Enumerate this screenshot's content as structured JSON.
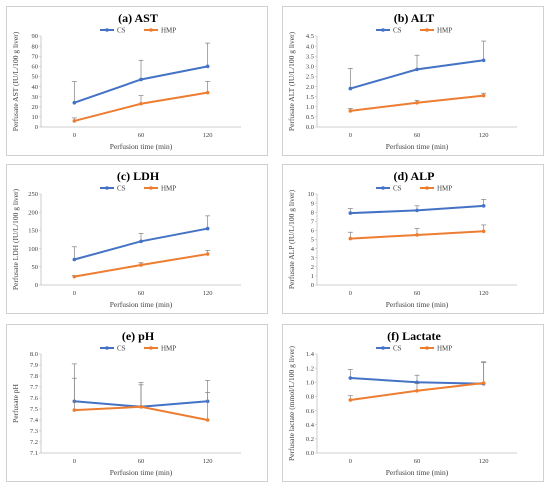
{
  "colors": {
    "CS": "#4472C4",
    "HMP": "#ED7D31",
    "errorbar": "#7f7f7f",
    "axis": "#bfbfbf"
  },
  "chart_data": [
    {
      "type": "line",
      "title": "(a) AST",
      "xlabel": "Perfusion time (min)",
      "ylabel": "Perfusate AST (IU/L/100 g liver)",
      "categories": [
        "0",
        "60",
        "120"
      ],
      "ylim": [
        0,
        90
      ],
      "yticks": [
        "0",
        "10",
        "20",
        "30",
        "40",
        "50",
        "60",
        "70",
        "80",
        "90"
      ],
      "legend": "top",
      "series": [
        {
          "name": "CS",
          "values": [
            24,
            47,
            60
          ],
          "errors": [
            21,
            19,
            23
          ]
        },
        {
          "name": "HMP",
          "values": [
            6,
            23,
            34
          ],
          "errors": [
            3,
            8,
            11
          ]
        }
      ]
    },
    {
      "type": "line",
      "title": "(b) ALT",
      "xlabel": "Perfusion time (min)",
      "ylabel": "Perfusate ALT (IU/L/100 g liver)",
      "categories": [
        "0",
        "60",
        "120"
      ],
      "ylim": [
        0,
        4.5
      ],
      "yticks": [
        "0.0",
        "0.5",
        "1.0",
        "1.5",
        "2.0",
        "2.5",
        "3.0",
        "3.5",
        "4.0",
        "4.5"
      ],
      "legend": "top",
      "series": [
        {
          "name": "CS",
          "values": [
            1.9,
            2.85,
            3.3
          ],
          "errors": [
            1.0,
            0.7,
            0.95
          ]
        },
        {
          "name": "HMP",
          "values": [
            0.8,
            1.2,
            1.55
          ],
          "errors": [
            0.12,
            0.12,
            0.12
          ]
        }
      ]
    },
    {
      "type": "line",
      "title": "(c) LDH",
      "xlabel": "Perfusion time (min)",
      "ylabel": "Perfusate LDH (IU/L/100 g liver)",
      "categories": [
        "0",
        "60",
        "120"
      ],
      "ylim": [
        0,
        250
      ],
      "yticks": [
        "0",
        "50",
        "100",
        "150",
        "200",
        "250"
      ],
      "legend": "top",
      "series": [
        {
          "name": "CS",
          "values": [
            70,
            120,
            155
          ],
          "errors": [
            35,
            22,
            35
          ]
        },
        {
          "name": "HMP",
          "values": [
            23,
            55,
            85
          ],
          "errors": [
            3,
            6,
            10
          ]
        }
      ]
    },
    {
      "type": "line",
      "title": "(d) ALP",
      "xlabel": "Perfusion time (min)",
      "ylabel": "Perfusate ALP (IU/L/100 g liver)",
      "categories": [
        "0",
        "60",
        "120"
      ],
      "ylim": [
        0,
        10
      ],
      "yticks": [
        "0",
        "1",
        "2",
        "3",
        "4",
        "5",
        "6",
        "7",
        "8",
        "9",
        "10"
      ],
      "legend": "top",
      "series": [
        {
          "name": "CS",
          "values": [
            7.9,
            8.2,
            8.7
          ],
          "errors": [
            0.5,
            0.5,
            0.7
          ]
        },
        {
          "name": "HMP",
          "values": [
            5.1,
            5.5,
            5.9
          ],
          "errors": [
            0.7,
            0.7,
            0.7
          ]
        }
      ]
    },
    {
      "type": "line",
      "title": "(e) pH",
      "xlabel": "Perfusion time (min)",
      "ylabel": "Perfusate pH",
      "categories": [
        "0",
        "60",
        "120"
      ],
      "ylim": [
        7.1,
        8.0
      ],
      "yticks": [
        "7.1",
        "7.2",
        "7.3",
        "7.4",
        "7.5",
        "7.6",
        "7.7",
        "7.8",
        "7.9",
        "8.0"
      ],
      "legend": "top",
      "series": [
        {
          "name": "CS",
          "values": [
            7.57,
            7.52,
            7.57
          ],
          "errors": [
            0.34,
            0.22,
            0.19
          ]
        },
        {
          "name": "HMP",
          "values": [
            7.49,
            7.52,
            7.4
          ],
          "errors": [
            0.29,
            0.2,
            0.25
          ]
        }
      ]
    },
    {
      "type": "line",
      "title": "(f) Lactate",
      "xlabel": "Perfusion time (min)",
      "ylabel": "Perfusate lactate (mmol/L/100 g liver)",
      "categories": [
        "0",
        "60",
        "120"
      ],
      "ylim": [
        0,
        1.4
      ],
      "yticks": [
        "0.0",
        "0.2",
        "0.4",
        "0.6",
        "0.8",
        "1.0",
        "1.2",
        "1.4"
      ],
      "legend": "top",
      "series": [
        {
          "name": "CS",
          "values": [
            1.06,
            1.0,
            0.98
          ],
          "errors": [
            0.12,
            0.1,
            0.3
          ]
        },
        {
          "name": "HMP",
          "values": [
            0.75,
            0.88,
            0.99
          ],
          "errors": [
            0.06,
            0.1,
            0.3
          ]
        }
      ]
    }
  ]
}
